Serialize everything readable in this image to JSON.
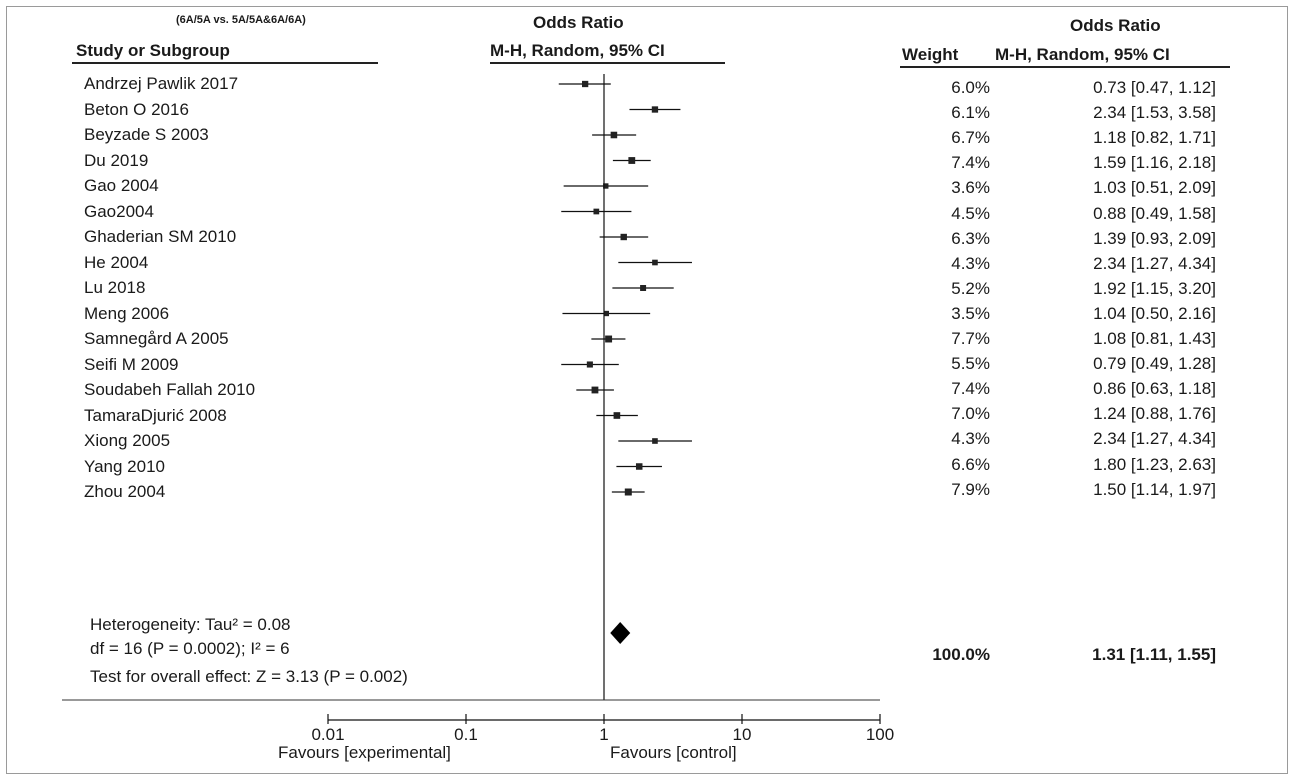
{
  "chart_data": {
    "type": "forest",
    "comparison": "(6A/5A vs. 5A/5A&6A/6A)",
    "columns": {
      "study": "Study or Subgroup",
      "or_group_title": "Odds Ratio",
      "or_group_method": "M-H, Random, 95% CI",
      "weight": "Weight",
      "or_text_title": "Odds Ratio",
      "or_text_method": "M-H, Random, 95% CI"
    },
    "studies": [
      {
        "name": "Andrzej Pawlik 2017",
        "or": 0.73,
        "lo": 0.47,
        "hi": 1.12,
        "weight": "6.0%",
        "ci_text": "0.73 [0.47, 1.12]"
      },
      {
        "name": "Beton O 2016",
        "or": 2.34,
        "lo": 1.53,
        "hi": 3.58,
        "weight": "6.1%",
        "ci_text": "2.34 [1.53, 3.58]"
      },
      {
        "name": "Beyzade S 2003",
        "or": 1.18,
        "lo": 0.82,
        "hi": 1.71,
        "weight": "6.7%",
        "ci_text": "1.18 [0.82, 1.71]"
      },
      {
        "name": "Du 2019",
        "or": 1.59,
        "lo": 1.16,
        "hi": 2.18,
        "weight": "7.4%",
        "ci_text": "1.59 [1.16, 2.18]"
      },
      {
        "name": "Gao 2004",
        "or": 1.03,
        "lo": 0.51,
        "hi": 2.09,
        "weight": "3.6%",
        "ci_text": "1.03 [0.51, 2.09]"
      },
      {
        "name": "Gao2004",
        "or": 0.88,
        "lo": 0.49,
        "hi": 1.58,
        "weight": "4.5%",
        "ci_text": "0.88 [0.49, 1.58]"
      },
      {
        "name": "Ghaderian SM 2010",
        "or": 1.39,
        "lo": 0.93,
        "hi": 2.09,
        "weight": "6.3%",
        "ci_text": "1.39 [0.93, 2.09]"
      },
      {
        "name": "He 2004",
        "or": 2.34,
        "lo": 1.27,
        "hi": 4.34,
        "weight": "4.3%",
        "ci_text": "2.34 [1.27, 4.34]"
      },
      {
        "name": "Lu 2018",
        "or": 1.92,
        "lo": 1.15,
        "hi": 3.2,
        "weight": "5.2%",
        "ci_text": "1.92 [1.15, 3.20]"
      },
      {
        "name": "Meng 2006",
        "or": 1.04,
        "lo": 0.5,
        "hi": 2.16,
        "weight": "3.5%",
        "ci_text": "1.04 [0.50, 2.16]"
      },
      {
        "name": "Samnegård A 2005",
        "or": 1.08,
        "lo": 0.81,
        "hi": 1.43,
        "weight": "7.7%",
        "ci_text": "1.08 [0.81, 1.43]"
      },
      {
        "name": "Seifi M 2009",
        "or": 0.79,
        "lo": 0.49,
        "hi": 1.28,
        "weight": "5.5%",
        "ci_text": "0.79 [0.49, 1.28]"
      },
      {
        "name": "Soudabeh Fallah 2010",
        "or": 0.86,
        "lo": 0.63,
        "hi": 1.18,
        "weight": "7.4%",
        "ci_text": "0.86 [0.63, 1.18]"
      },
      {
        "name": "TamaraDjurić 2008",
        "or": 1.24,
        "lo": 0.88,
        "hi": 1.76,
        "weight": "7.0%",
        "ci_text": "1.24 [0.88, 1.76]"
      },
      {
        "name": "Xiong 2005",
        "or": 2.34,
        "lo": 1.27,
        "hi": 4.34,
        "weight": "4.3%",
        "ci_text": "2.34 [1.27, 4.34]"
      },
      {
        "name": "Yang 2010",
        "or": 1.8,
        "lo": 1.23,
        "hi": 2.63,
        "weight": "6.6%",
        "ci_text": "1.80 [1.23, 2.63]"
      },
      {
        "name": "Zhou 2004",
        "or": 1.5,
        "lo": 1.14,
        "hi": 1.97,
        "weight": "7.9%",
        "ci_text": "1.50 [1.14, 1.97]"
      }
    ],
    "pooled": {
      "or": 1.31,
      "lo": 1.11,
      "hi": 1.55,
      "weight": "100.0%",
      "ci_text": "1.31 [1.11, 1.55]"
    },
    "heterogeneity_line1": "Heterogeneity: Tau² = 0.08",
    "heterogeneity_line2": "df = 16 (P = 0.0002); I² = 6",
    "overall_effect": "Test for overall effect: Z = 3.13 (P = 0.002)",
    "x_axis": {
      "scale": "log",
      "ticks": [
        0.01,
        0.1,
        1,
        10,
        100
      ],
      "tick_labels": [
        "0.01",
        "0.1",
        "1",
        "10",
        "100"
      ],
      "left_label": "Favours [experimental]",
      "right_label": "Favours [control]"
    }
  }
}
